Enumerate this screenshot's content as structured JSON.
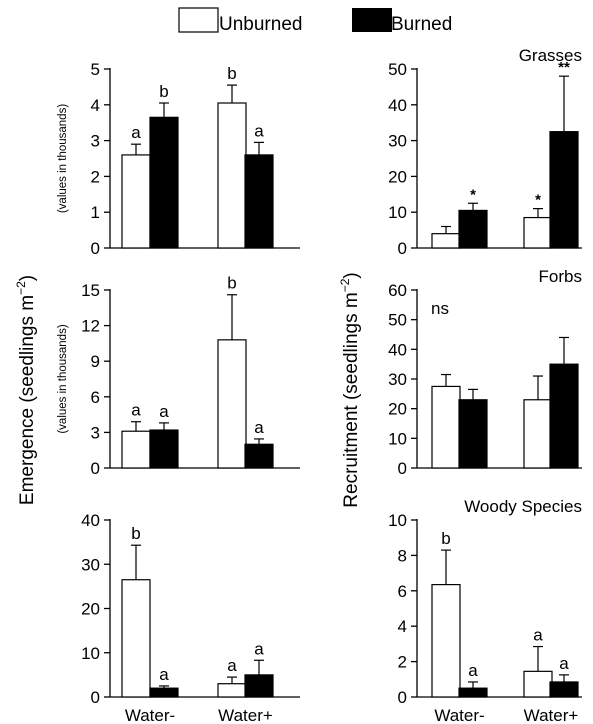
{
  "legend": {
    "items": [
      {
        "label": "Unburned",
        "color": "#ffffff"
      },
      {
        "label": "Burned",
        "color": "#000000"
      }
    ]
  },
  "y_titles": {
    "left": "Emergence (seedlings m",
    "right": "Recruitment (seedlings m",
    "unit_exp": "−2"
  },
  "colors": {
    "unburned": "#ffffff",
    "burned": "#000000",
    "axis": "#000000"
  },
  "chart_data": [
    {
      "type": "bar",
      "title": "",
      "units_note": "(values in thousands)",
      "categories": [
        "Water-",
        "Water+"
      ],
      "ylim": [
        0,
        5
      ],
      "yticks": [
        0,
        1,
        2,
        3,
        4,
        5
      ],
      "series": [
        {
          "name": "Unburned",
          "values": [
            2.6,
            4.05
          ],
          "errors": [
            0.3,
            0.5
          ],
          "letters": [
            "a",
            "b"
          ]
        },
        {
          "name": "Burned",
          "values": [
            3.65,
            2.6
          ],
          "errors": [
            0.4,
            0.35
          ],
          "letters": [
            "b",
            "a"
          ]
        }
      ]
    },
    {
      "type": "bar",
      "title": "Grasses",
      "units_note": "",
      "categories": [
        "Water-",
        "Water+"
      ],
      "ylim": [
        0,
        50
      ],
      "yticks": [
        0,
        10,
        20,
        30,
        40,
        50
      ],
      "series": [
        {
          "name": "Unburned",
          "values": [
            4,
            8.5
          ],
          "errors": [
            2,
            2.5
          ],
          "letters": [
            "",
            "*"
          ]
        },
        {
          "name": "Burned",
          "values": [
            10.5,
            32.5
          ],
          "errors": [
            2,
            15.5
          ],
          "letters": [
            "*",
            "**"
          ]
        }
      ]
    },
    {
      "type": "bar",
      "title": "",
      "units_note": "(values in thousands)",
      "categories": [
        "Water-",
        "Water+"
      ],
      "ylim": [
        0,
        15
      ],
      "yticks": [
        0,
        3,
        6,
        9,
        12,
        15
      ],
      "series": [
        {
          "name": "Unburned",
          "values": [
            3.1,
            10.8
          ],
          "errors": [
            0.8,
            3.8
          ],
          "letters": [
            "a",
            "b"
          ]
        },
        {
          "name": "Burned",
          "values": [
            3.2,
            2.0
          ],
          "errors": [
            0.6,
            0.45
          ],
          "letters": [
            "a",
            "a"
          ]
        }
      ]
    },
    {
      "type": "bar",
      "title": "Forbs",
      "note": "ns",
      "categories": [
        "Water-",
        "Water+"
      ],
      "ylim": [
        0,
        60
      ],
      "yticks": [
        0,
        10,
        20,
        30,
        40,
        50,
        60
      ],
      "series": [
        {
          "name": "Unburned",
          "values": [
            27.5,
            23
          ],
          "errors": [
            4,
            8
          ],
          "letters": [
            "",
            ""
          ]
        },
        {
          "name": "Burned",
          "values": [
            23,
            35
          ],
          "errors": [
            3.5,
            9
          ],
          "letters": [
            "",
            ""
          ]
        }
      ]
    },
    {
      "type": "bar",
      "title": "",
      "units_note": "",
      "categories": [
        "Water-",
        "Water+"
      ],
      "ylim": [
        0,
        40
      ],
      "yticks": [
        0,
        10,
        20,
        30,
        40
      ],
      "series": [
        {
          "name": "Unburned",
          "values": [
            26.5,
            3
          ],
          "errors": [
            7.8,
            1.5
          ],
          "letters": [
            "b",
            "a"
          ]
        },
        {
          "name": "Burned",
          "values": [
            2,
            5
          ],
          "errors": [
            0.5,
            3.3
          ],
          "letters": [
            "a",
            "a"
          ]
        }
      ]
    },
    {
      "type": "bar",
      "title": "Woody Species",
      "units_note": "",
      "categories": [
        "Water-",
        "Water+"
      ],
      "ylim": [
        0,
        10
      ],
      "yticks": [
        0,
        2,
        4,
        6,
        8,
        10
      ],
      "series": [
        {
          "name": "Unburned",
          "values": [
            6.35,
            1.45
          ],
          "errors": [
            1.95,
            1.4
          ],
          "letters": [
            "b",
            "a"
          ]
        },
        {
          "name": "Burned",
          "values": [
            0.5,
            0.85
          ],
          "errors": [
            0.35,
            0.4
          ],
          "letters": [
            "a",
            "a"
          ]
        }
      ]
    }
  ]
}
